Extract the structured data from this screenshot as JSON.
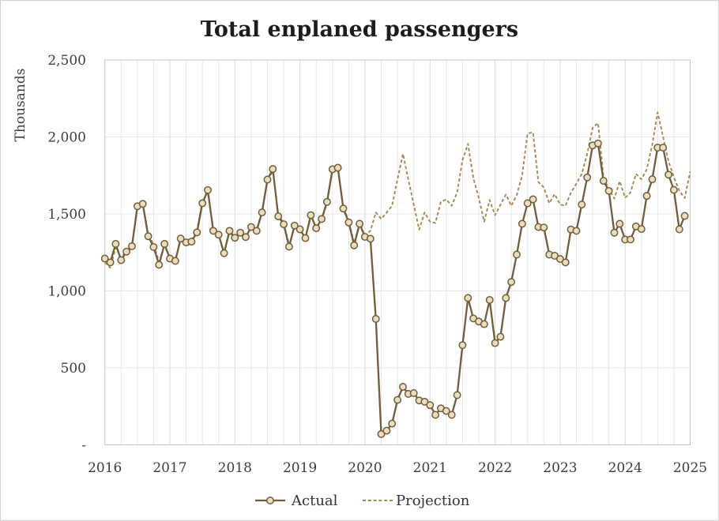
{
  "window": {
    "background": "#ffffff",
    "border_color": "#d2d2d2"
  },
  "colors": {
    "actual_line": "#6f5d3b",
    "actual_marker_fill": "#ecddbe",
    "projection_line": "#a6874f",
    "grid_minor": "#e7e7e7",
    "grid_year": "#d9d9d9",
    "plot_border": "#c6c6c6",
    "title_text": "#1c1c1c",
    "tick_text": "#3d3d3d"
  },
  "chart_data": {
    "type": "line",
    "title": "Total enplaned passengers",
    "ylabel": "Thousands",
    "xlabel": "",
    "ylim": [
      0,
      2500
    ],
    "grid": true,
    "vertical_grid": "quarterly",
    "legend_position": "bottom-center",
    "x_start": "Jan 2016",
    "x_end": "Jan 2025",
    "y_ticks": [
      {
        "label": "2,500",
        "value": 2500
      },
      {
        "label": "2,000",
        "value": 2000
      },
      {
        "label": "1,500",
        "value": 1500
      },
      {
        "label": "1,000",
        "value": 1000
      },
      {
        "label": "500",
        "value": 500
      },
      {
        "label": "-",
        "value": 0
      }
    ],
    "x_ticks": [
      {
        "label": "2016",
        "month_index": 0
      },
      {
        "label": "2017",
        "month_index": 12
      },
      {
        "label": "2018",
        "month_index": 24
      },
      {
        "label": "2019",
        "month_index": 36
      },
      {
        "label": "2020",
        "month_index": 48
      },
      {
        "label": "2021",
        "month_index": 60
      },
      {
        "label": "2022",
        "month_index": 72
      },
      {
        "label": "2023",
        "month_index": 84
      },
      {
        "label": "2024",
        "month_index": 96
      },
      {
        "label": "2025",
        "month_index": 108
      }
    ],
    "series": [
      {
        "name": "Actual",
        "style": "solid",
        "marker": "circle",
        "start_month_index": 0,
        "values": [
          1210,
          1185,
          1305,
          1200,
          1255,
          1290,
          1550,
          1565,
          1355,
          1285,
          1170,
          1305,
          1210,
          1195,
          1340,
          1315,
          1320,
          1380,
          1570,
          1655,
          1390,
          1365,
          1245,
          1390,
          1345,
          1378,
          1350,
          1415,
          1390,
          1510,
          1723,
          1792,
          1484,
          1433,
          1287,
          1424,
          1400,
          1343,
          1492,
          1407,
          1467,
          1578,
          1790,
          1800,
          1535,
          1445,
          1296,
          1436,
          1351,
          1339,
          818,
          70,
          92,
          138,
          292,
          377,
          331,
          336,
          288,
          280,
          258,
          195,
          237,
          220,
          195,
          323,
          647,
          954,
          821,
          801,
          784,
          941,
          661,
          702,
          954,
          1058,
          1236,
          1436,
          1569,
          1595,
          1415,
          1412,
          1236,
          1228,
          1207,
          1185,
          1399,
          1390,
          1561,
          1737,
          1945,
          1958,
          1715,
          1650,
          1378,
          1436,
          1334,
          1334,
          1419,
          1402,
          1617,
          1725,
          1931,
          1931,
          1755,
          1656,
          1400,
          1487
        ]
      },
      {
        "name": "Projection",
        "style": "dashed",
        "marker": "none",
        "start_month_index": 0,
        "values": [
          1185,
          1150,
          1280,
          1215,
          1265,
          1300,
          1540,
          1570,
          1370,
          1300,
          1190,
          1290,
          1220,
          1205,
          1330,
          1300,
          1330,
          1395,
          1580,
          1640,
          1400,
          1355,
          1255,
          1380,
          1340,
          1370,
          1360,
          1400,
          1395,
          1520,
          1715,
          1780,
          1495,
          1440,
          1300,
          1415,
          1390,
          1350,
          1480,
          1415,
          1460,
          1570,
          1780,
          1795,
          1545,
          1455,
          1310,
          1440,
          1360,
          1390,
          1510,
          1467,
          1510,
          1553,
          1725,
          1890,
          1723,
          1560,
          1398,
          1510,
          1450,
          1441,
          1578,
          1595,
          1553,
          1640,
          1850,
          1955,
          1732,
          1605,
          1450,
          1590,
          1492,
          1560,
          1626,
          1553,
          1622,
          1751,
          2022,
          2030,
          1707,
          1672,
          1569,
          1629,
          1561,
          1553,
          1638,
          1697,
          1760,
          1890,
          2060,
          2090,
          1740,
          1660,
          1600,
          1713,
          1605,
          1640,
          1760,
          1725,
          1790,
          1950,
          2160,
          2000,
          1842,
          1740,
          1650,
          1603,
          1775
        ]
      }
    ]
  },
  "legend": {
    "items": [
      {
        "label": "Actual"
      },
      {
        "label": "Projection"
      }
    ]
  }
}
